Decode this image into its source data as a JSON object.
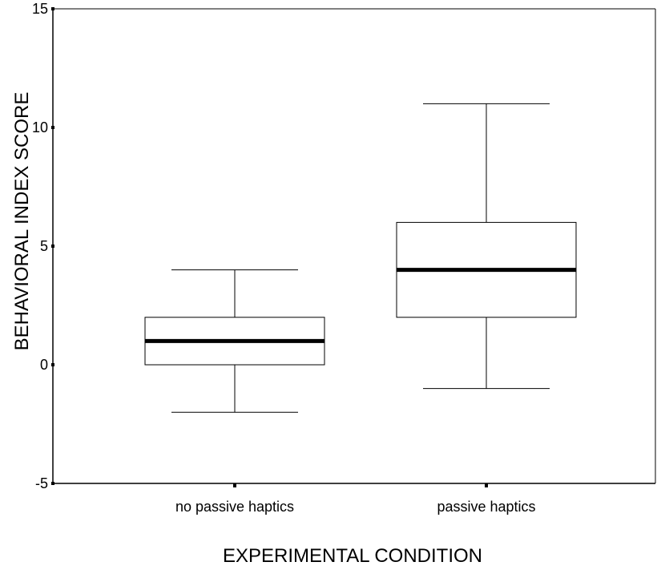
{
  "chart_data": {
    "type": "boxplot",
    "title": "",
    "xlabel": "EXPERIMENTAL CONDITION",
    "ylabel": "BEHAVIORAL INDEX SCORE",
    "ylim": [
      -5,
      15
    ],
    "yticks": [
      -5,
      0,
      5,
      10,
      15
    ],
    "ytick_labels": [
      "-5",
      "0",
      "5",
      "10",
      "15"
    ],
    "grid": false,
    "categories": [
      "no passive haptics",
      "passive haptics"
    ],
    "boxes": [
      {
        "name": "no passive haptics",
        "whisker_low": -2,
        "q1": 0,
        "median": 1,
        "q3": 2,
        "whisker_high": 4
      },
      {
        "name": "passive haptics",
        "whisker_low": -1,
        "q1": 2,
        "median": 4,
        "q3": 6,
        "whisker_high": 11
      }
    ]
  }
}
